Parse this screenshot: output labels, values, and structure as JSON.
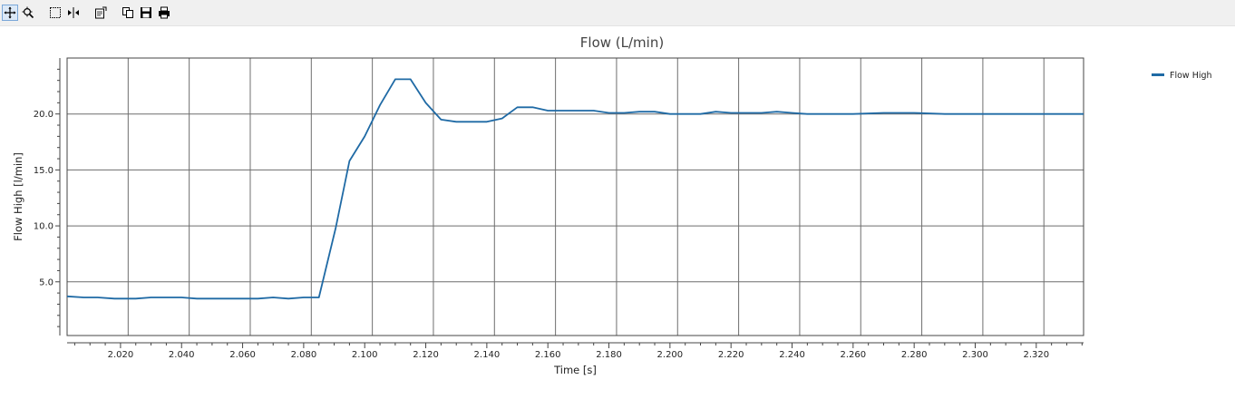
{
  "toolbar": {
    "buttons": [
      {
        "name": "pan-button",
        "icon": "move-arrows-icon",
        "active": true
      },
      {
        "name": "zoom-button",
        "icon": "zoom-magnifier-icon",
        "active": false
      },
      {
        "name": "select-region-button",
        "icon": "dashed-rectangle-icon",
        "active": false
      },
      {
        "name": "cursor-button",
        "icon": "vertical-cursor-icon",
        "active": false
      },
      {
        "name": "properties-button",
        "icon": "properties-icon",
        "active": false
      },
      {
        "name": "copy-button",
        "icon": "copy-icon",
        "active": false
      },
      {
        "name": "save-button",
        "icon": "floppy-disk-icon",
        "active": false
      },
      {
        "name": "print-button",
        "icon": "printer-icon",
        "active": false
      }
    ]
  },
  "chart_data": {
    "type": "line",
    "title": "Flow (L/min)",
    "xlabel": "Time [s]",
    "ylabel": "Flow High [l/min]",
    "xlim": [
      2.0025,
      2.3355
    ],
    "ylim": [
      0.2,
      25.0
    ],
    "x_ticks": [
      2.02,
      2.04,
      2.06,
      2.08,
      2.1,
      2.12,
      2.14,
      2.16,
      2.18,
      2.2,
      2.22,
      2.24,
      2.26,
      2.28,
      2.3,
      2.32
    ],
    "x_tick_labels": [
      "2.020",
      "2.040",
      "2.060",
      "2.080",
      "2.100",
      "2.120",
      "2.140",
      "2.160",
      "2.180",
      "2.200",
      "2.220",
      "2.240",
      "2.260",
      "2.280",
      "2.300",
      "2.320"
    ],
    "y_ticks": [
      5.0,
      10.0,
      15.0,
      20.0
    ],
    "y_tick_labels": [
      "5.0",
      "10.0",
      "15.0",
      "20.0"
    ],
    "grid_x": [
      2.0025,
      2.0225,
      2.0425,
      2.0625,
      2.0825,
      2.1025,
      2.1225,
      2.1425,
      2.1625,
      2.1825,
      2.2025,
      2.2225,
      2.2425,
      2.2625,
      2.2825,
      2.3025,
      2.3225
    ],
    "grid_y": [
      5.0,
      10.0,
      15.0,
      20.0
    ],
    "legend": {
      "position": "top-right",
      "entries": [
        "Flow High"
      ]
    },
    "series": [
      {
        "name": "Flow High",
        "color": "#1f6aa5",
        "x": [
          2.0025,
          2.008,
          2.0125,
          2.018,
          2.025,
          2.03,
          2.035,
          2.04,
          2.045,
          2.05,
          2.055,
          2.06,
          2.065,
          2.07,
          2.075,
          2.08,
          2.085,
          2.0905,
          2.095,
          2.1,
          2.105,
          2.11,
          2.115,
          2.12,
          2.125,
          2.13,
          2.135,
          2.14,
          2.145,
          2.15,
          2.155,
          2.16,
          2.165,
          2.17,
          2.175,
          2.18,
          2.185,
          2.19,
          2.195,
          2.2,
          2.205,
          2.21,
          2.215,
          2.22,
          2.225,
          2.23,
          2.235,
          2.24,
          2.245,
          2.25,
          2.26,
          2.27,
          2.28,
          2.29,
          2.3,
          2.31,
          2.32,
          2.3355
        ],
        "y": [
          3.7,
          3.6,
          3.6,
          3.5,
          3.5,
          3.6,
          3.6,
          3.6,
          3.5,
          3.5,
          3.5,
          3.5,
          3.5,
          3.6,
          3.5,
          3.6,
          3.6,
          9.8,
          15.8,
          18.0,
          20.8,
          23.1,
          23.1,
          21.0,
          19.5,
          19.3,
          19.3,
          19.3,
          19.6,
          20.6,
          20.6,
          20.3,
          20.3,
          20.3,
          20.3,
          20.1,
          20.1,
          20.2,
          20.2,
          20.0,
          20.0,
          20.0,
          20.2,
          20.1,
          20.1,
          20.1,
          20.2,
          20.1,
          20.0,
          20.0,
          20.0,
          20.1,
          20.1,
          20.0,
          20.0,
          20.0,
          20.0,
          20.0
        ]
      }
    ]
  }
}
